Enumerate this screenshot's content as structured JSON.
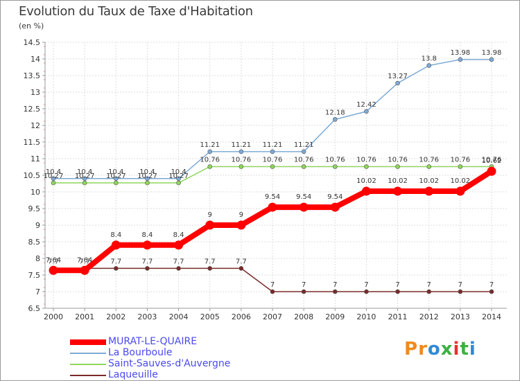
{
  "header": {
    "title": "Evolution du Taux de Taxe d'Habitation",
    "subtitle": "(en %)"
  },
  "brand": {
    "logo_text": "Proxiti",
    "letter_colors": [
      "#f08a1c",
      "#f08a1c",
      "#2f8ad8",
      "#3cb043",
      "#e5332a",
      "#3cb043",
      "#2f8ad8"
    ]
  },
  "chart_data": {
    "type": "line",
    "title": "Evolution du Taux de Taxe d'Habitation",
    "subtitle": "(en %)",
    "xlabel": "",
    "ylabel": "",
    "x": [
      "2000",
      "2001",
      "2002",
      "2003",
      "2004",
      "2005",
      "2006",
      "2007",
      "2008",
      "2009",
      "2010",
      "2011",
      "2012",
      "2013",
      "2014"
    ],
    "ylim": [
      6.5,
      14.5
    ],
    "yticks": [
      "6.5",
      "7",
      "7.5",
      "8",
      "8.5",
      "9",
      "9.5",
      "10",
      "10.5",
      "11",
      "11.5",
      "12",
      "12.5",
      "13",
      "13.5",
      "14",
      "14.5"
    ],
    "grid": true,
    "legend_position": "bottom-left",
    "series": [
      {
        "name": "MURAT-LE-QUAIRE",
        "color": "#ff0000",
        "emphasis": "thick",
        "values": [
          7.64,
          7.64,
          8.4,
          8.4,
          8.4,
          9,
          9,
          9.54,
          9.54,
          9.54,
          10.02,
          10.02,
          10.02,
          10.02,
          10.62
        ],
        "labels": [
          "7.64",
          "7.64",
          "8.4",
          "8.4",
          "8.4",
          "9",
          "9",
          "9.54",
          "9.54",
          "9.54",
          "10.02",
          "10.02",
          "10.02",
          "10.02",
          "10.62"
        ]
      },
      {
        "name": "La Bourboule",
        "color": "#7eaad6",
        "emphasis": "thin",
        "values": [
          10.4,
          10.4,
          10.4,
          10.4,
          10.4,
          11.21,
          11.21,
          11.21,
          11.21,
          12.18,
          12.42,
          13.27,
          13.8,
          13.98,
          13.98
        ],
        "labels": [
          "10.4",
          "10.4",
          "10.4",
          "10.4",
          "10.4",
          "11.21",
          "11.21",
          "11.21",
          "11.21",
          "12.18",
          "12.42",
          "13.27",
          "13.8",
          "13.98",
          "13.98"
        ]
      },
      {
        "name": "Saint-Sauves-d'Auvergne",
        "color": "#8ed65a",
        "emphasis": "thin",
        "values": [
          10.27,
          10.27,
          10.27,
          10.27,
          10.27,
          10.76,
          10.76,
          10.76,
          10.76,
          10.76,
          10.76,
          10.76,
          10.76,
          10.76,
          10.76
        ],
        "labels": [
          "10.27",
          "10.27",
          "10.27",
          "10.27",
          "10.27",
          "10.76",
          "10.76",
          "10.76",
          "10.76",
          "10.76",
          "10.76",
          "10.76",
          "10.76",
          "10.76",
          "10.76"
        ]
      },
      {
        "name": "Laqueuille",
        "color": "#7a2a2a",
        "emphasis": "thin",
        "values": [
          7.7,
          7.7,
          7.7,
          7.7,
          7.7,
          7.7,
          7.7,
          7,
          7,
          7,
          7,
          7,
          7,
          7,
          7
        ],
        "labels": [
          "7.7",
          "7.7",
          "7.7",
          "7.7",
          "7.7",
          "7.7",
          "7.7",
          "7",
          "7",
          "7",
          "7",
          "7",
          "7",
          "7",
          "7"
        ]
      }
    ]
  }
}
